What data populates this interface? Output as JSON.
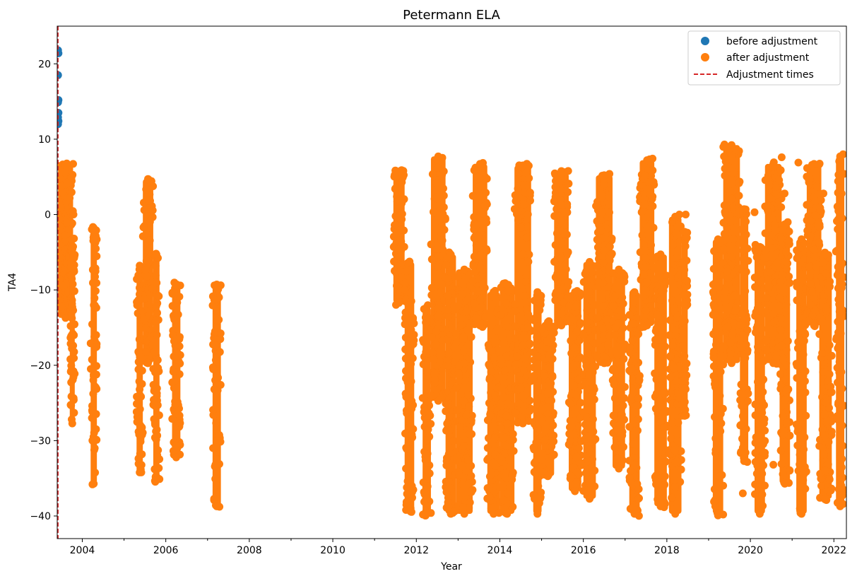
{
  "chart_data": {
    "type": "scatter",
    "title": "Petermann ELA",
    "xlabel": "Year",
    "ylabel": "TA4",
    "xlim": [
      2003.4,
      2022.3
    ],
    "ylim": [
      -43,
      25
    ],
    "x_ticks": [
      2004,
      2006,
      2008,
      2010,
      2012,
      2014,
      2016,
      2018,
      2020,
      2022
    ],
    "y_ticks": [
      20,
      10,
      0,
      -10,
      -20,
      -30,
      -40
    ],
    "legend_position": "top-right",
    "series": [
      {
        "name": "before adjustment",
        "color": "#1f77b4",
        "marker": "circle",
        "points": [
          [
            2003.42,
            21.8
          ],
          [
            2003.43,
            21.4
          ],
          [
            2003.42,
            18.5
          ],
          [
            2003.43,
            15.2
          ],
          [
            2003.42,
            14.9
          ],
          [
            2003.43,
            13.5
          ],
          [
            2003.42,
            12.9
          ],
          [
            2003.43,
            12.4
          ],
          [
            2003.42,
            12.0
          ]
        ]
      },
      {
        "name": "after adjustment",
        "color": "#ff7f0e",
        "marker": "circle",
        "clusters": [
          {
            "x": [
              2003.42,
              2003.78
            ],
            "y": [
              -14,
              6.8
            ]
          },
          {
            "x": [
              2003.7,
              2003.82
            ],
            "y": [
              -28,
              -3
            ]
          },
          {
            "x": [
              2004.2,
              2004.35
            ],
            "y": [
              -36,
              -1.5
            ]
          },
          {
            "x": [
              2005.3,
              2005.45
            ],
            "y": [
              -34.5,
              -6.5
            ]
          },
          {
            "x": [
              2005.45,
              2005.7
            ],
            "y": [
              -20,
              5
            ]
          },
          {
            "x": [
              2005.7,
              2005.85
            ],
            "y": [
              -35.5,
              -5
            ]
          },
          {
            "x": [
              2006.15,
              2006.35
            ],
            "y": [
              -32.5,
              -9
            ]
          },
          {
            "x": [
              2007.12,
              2007.32
            ],
            "y": [
              -39,
              -9
            ]
          },
          {
            "x": [
              2011.45,
              2011.72
            ],
            "y": [
              -12,
              6
            ]
          },
          {
            "x": [
              2011.72,
              2011.95
            ],
            "y": [
              -39.5,
              -6
            ]
          },
          {
            "x": [
              2012.15,
              2012.35
            ],
            "y": [
              -40,
              -12
            ]
          },
          {
            "x": [
              2012.35,
              2012.7
            ],
            "y": [
              -25,
              8
            ]
          },
          {
            "x": [
              2012.7,
              2012.95
            ],
            "y": [
              -40,
              -5
            ]
          },
          {
            "x": [
              2012.95,
              2013.35
            ],
            "y": [
              -40,
              -7
            ]
          },
          {
            "x": [
              2013.35,
              2013.7
            ],
            "y": [
              -15,
              7
            ]
          },
          {
            "x": [
              2013.7,
              2014.0
            ],
            "y": [
              -40,
              -10
            ]
          },
          {
            "x": [
              2014.0,
              2014.35
            ],
            "y": [
              -40,
              -9
            ]
          },
          {
            "x": [
              2014.35,
              2014.75
            ],
            "y": [
              -28,
              6.8
            ]
          },
          {
            "x": [
              2014.8,
              2015.0
            ],
            "y": [
              -40,
              -10
            ]
          },
          {
            "x": [
              2015.0,
              2015.3
            ],
            "y": [
              -35,
              -14
            ]
          },
          {
            "x": [
              2015.3,
              2015.65
            ],
            "y": [
              -15,
              5.8
            ]
          },
          {
            "x": [
              2015.65,
              2015.95
            ],
            "y": [
              -37,
              -10
            ]
          },
          {
            "x": [
              2016.0,
              2016.3
            ],
            "y": [
              -38,
              -6
            ]
          },
          {
            "x": [
              2016.3,
              2016.7
            ],
            "y": [
              -20,
              5.5
            ]
          },
          {
            "x": [
              2016.7,
              2017.0
            ],
            "y": [
              -34,
              -7
            ]
          },
          {
            "x": [
              2017.1,
              2017.35
            ],
            "y": [
              -40,
              -10
            ]
          },
          {
            "x": [
              2017.35,
              2017.7
            ],
            "y": [
              -15,
              7.5
            ]
          },
          {
            "x": [
              2017.7,
              2018.0
            ],
            "y": [
              -39,
              -5
            ]
          },
          {
            "x": [
              2018.05,
              2018.35
            ],
            "y": [
              -40,
              0
            ]
          },
          {
            "x": [
              2018.35,
              2018.5
            ],
            "y": [
              -27,
              -2
            ]
          },
          {
            "x": [
              2019.1,
              2019.35
            ],
            "y": [
              -40,
              -3
            ]
          },
          {
            "x": [
              2019.35,
              2019.75
            ],
            "y": [
              -20,
              9.5
            ]
          },
          {
            "x": [
              2019.75,
              2019.95
            ],
            "y": [
              -33,
              1
            ]
          },
          {
            "x": [
              2020.1,
              2020.35
            ],
            "y": [
              -40,
              -4
            ]
          },
          {
            "x": [
              2020.35,
              2020.75
            ],
            "y": [
              -20,
              7
            ]
          },
          {
            "x": [
              2020.7,
              2020.95
            ],
            "y": [
              -36,
              -1
            ]
          },
          {
            "x": [
              2021.1,
              2021.35
            ],
            "y": [
              -40,
              -3
            ]
          },
          {
            "x": [
              2021.35,
              2021.7
            ],
            "y": [
              -15,
              7
            ]
          },
          {
            "x": [
              2021.65,
              2021.95
            ],
            "y": [
              -38,
              -5
            ]
          },
          {
            "x": [
              2022.05,
              2022.25
            ],
            "y": [
              -39,
              8
            ]
          }
        ],
        "outliers": [
          [
            2003.79,
            0.0
          ],
          [
            2018.3,
            0.0
          ],
          [
            2018.45,
            0.0
          ],
          [
            2019.38,
            9.3
          ],
          [
            2019.82,
            -37.0
          ],
          [
            2020.1,
            0.3
          ],
          [
            2020.55,
            -33.2
          ],
          [
            2020.75,
            7.6
          ],
          [
            2020.82,
            2.8
          ],
          [
            2021.75,
            2.8
          ],
          [
            2021.15,
            6.9
          ],
          [
            2021.7,
            -36.0
          ],
          [
            2022.22,
            8.0
          ],
          [
            2022.2,
            -0.5
          ]
        ]
      },
      {
        "name": "Adjustment times",
        "color": "#d62728",
        "style": "dashed-vertical-line",
        "x": [
          2003.42
        ]
      }
    ]
  }
}
